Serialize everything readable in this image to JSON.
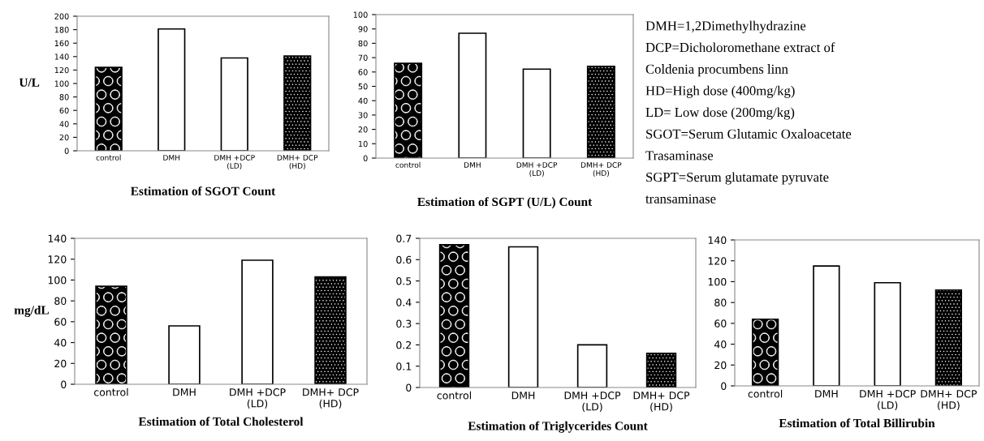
{
  "chart_data": [
    {
      "type": "bar",
      "title": "Estimation of SGOT Count",
      "ylabel": "U/L",
      "categories": [
        "control",
        "DMH",
        "DMH +DCP\n(LD)",
        "DMH+ DCP\n(HD)"
      ],
      "values": [
        124,
        181,
        138,
        141
      ],
      "colors": [
        "#000000",
        "#ffffff",
        "#ffffff",
        "#000000"
      ],
      "ylim": [
        0,
        200
      ],
      "yticks": [
        0,
        20,
        40,
        60,
        80,
        100,
        120,
        140,
        160,
        180,
        200
      ],
      "grid": false
    },
    {
      "type": "bar",
      "title": "Estimation of SGPT (U/L) Count",
      "categories": [
        "control",
        "DMH",
        "DMH +DCP\n(LD)",
        "DMH+ DCP\n(HD)"
      ],
      "values": [
        66,
        87,
        62,
        64
      ],
      "colors": [
        "#000000",
        "#ffffff",
        "#ffffff",
        "#000000"
      ],
      "ylim": [
        0,
        100
      ],
      "yticks": [
        0,
        10,
        20,
        30,
        40,
        50,
        60,
        70,
        80,
        90,
        100
      ],
      "grid": false
    },
    {
      "type": "other",
      "annotations": [
        "DMH=1,2Dimethylhydrazine",
        "DCP=Dicholoromethane extract of",
        "Coldenia procumbens linn",
        "HD=High dose (400mg/kg)",
        "LD= Low dose (200mg/kg)",
        "SGOT=Serum Glutamic Oxaloacetate",
        "Trasaminase",
        "SGPT=Serum glutamate pyruvate",
        "transaminase"
      ]
    },
    {
      "type": "bar",
      "title": "Estimation of Total Cholesterol",
      "ylabel": "mg/dL",
      "categories": [
        "control",
        "DMH",
        "DMH +DCP\n(LD)",
        "DMH+ DCP\n(HD)"
      ],
      "values": [
        94,
        56,
        119,
        103
      ],
      "colors": [
        "#000000",
        "#ffffff",
        "#ffffff",
        "#000000"
      ],
      "ylim": [
        0,
        140
      ],
      "yticks": [
        0,
        20,
        40,
        60,
        80,
        100,
        120,
        140
      ],
      "grid": false
    },
    {
      "type": "bar",
      "title": "Estimation of Triglycerides Count",
      "categories": [
        "control",
        "DMH",
        "DMH +DCP\n(LD)",
        "DMH+ DCP\n(HD)"
      ],
      "values": [
        0.67,
        0.66,
        0.2,
        0.16
      ],
      "colors": [
        "#000000",
        "#ffffff",
        "#ffffff",
        "#000000"
      ],
      "ylim": [
        0,
        0.7
      ],
      "yticks": [
        0,
        0.1,
        0.2,
        0.3,
        0.4,
        0.5,
        0.6,
        0.7
      ],
      "grid": false
    },
    {
      "type": "bar",
      "title": "Estimation of Total Billirubin",
      "categories": [
        "control",
        "DMH",
        "DMH +DCP\n(LD)",
        "DMH+ DCP\n(HD)"
      ],
      "values": [
        64,
        115,
        99,
        92
      ],
      "colors": [
        "#000000",
        "#ffffff",
        "#ffffff",
        "#000000"
      ],
      "ylim": [
        0,
        140
      ],
      "yticks": [
        0,
        20,
        40,
        60,
        80,
        100,
        120,
        140
      ],
      "grid": false
    }
  ]
}
